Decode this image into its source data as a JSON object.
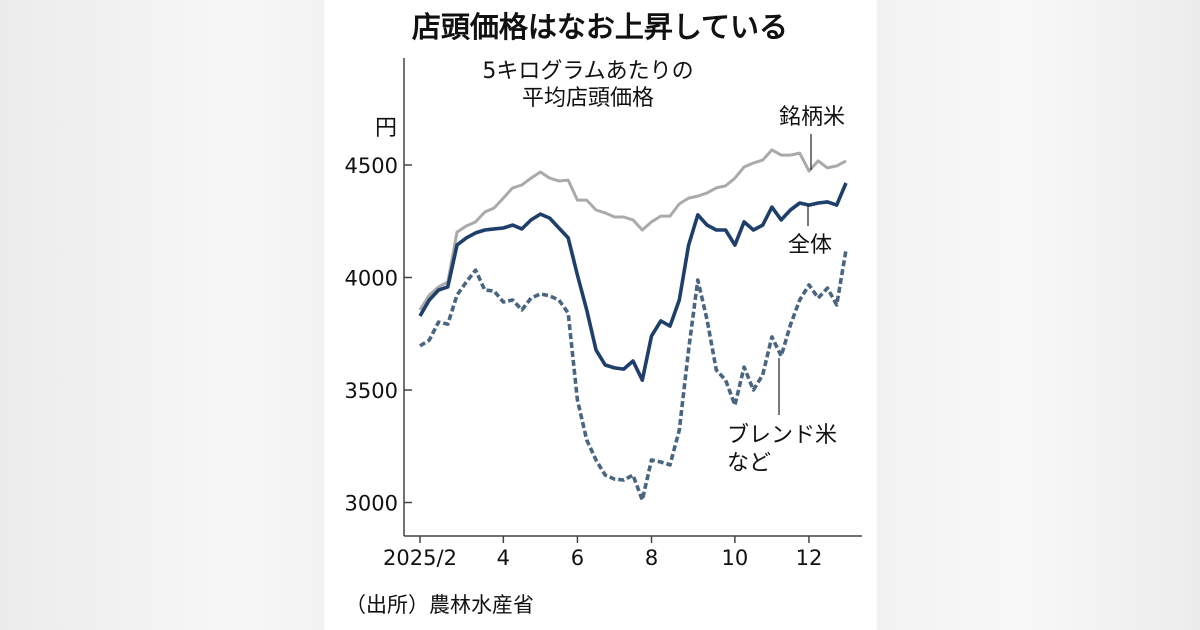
{
  "chart_data": {
    "type": "line",
    "title": "店頭価格はなお上昇している",
    "subtitle": [
      "5キログラムあたりの",
      "平均店頭価格"
    ],
    "ylabel": "円",
    "ylim": [
      2900,
      4800
    ],
    "yticks": [
      3000,
      3500,
      4000,
      4500
    ],
    "xticks": [
      {
        "label": "2025/2",
        "week": 0
      },
      {
        "label": "4",
        "week": 9
      },
      {
        "label": "6",
        "week": 17
      },
      {
        "label": "8",
        "week": 25
      },
      {
        "label": "10",
        "week": 34
      },
      {
        "label": "12",
        "week": 42
      }
    ],
    "x_unit": "weeks since 2025/2",
    "series": [
      {
        "name": "銘柄米",
        "color": "#aaaaaa",
        "style": "solid",
        "values": [
          3856,
          3922,
          3958,
          3980,
          4202,
          4229,
          4247,
          4291,
          4309,
          4353,
          4398,
          4411,
          4442,
          4469,
          4442,
          4429,
          4433,
          4344,
          4344,
          4300,
          4287,
          4269,
          4269,
          4256,
          4211,
          4247,
          4273,
          4273,
          4327,
          4353,
          4362,
          4376,
          4398,
          4407,
          4442,
          4491,
          4509,
          4522,
          4567,
          4544,
          4544,
          4553,
          4473,
          4518,
          4487,
          4496,
          4518
        ]
      },
      {
        "name": "全体",
        "color": "#1f3f6b",
        "style": "solid",
        "values": [
          3829,
          3900,
          3944,
          3958,
          4144,
          4176,
          4198,
          4211,
          4216,
          4220,
          4233,
          4216,
          4256,
          4282,
          4264,
          4220,
          4176,
          4011,
          3856,
          3678,
          3611,
          3598,
          3593,
          3629,
          3544,
          3740,
          3807,
          3784,
          3900,
          4144,
          4278,
          4233,
          4211,
          4211,
          4144,
          4247,
          4211,
          4233,
          4313,
          4256,
          4300,
          4331,
          4322,
          4331,
          4336,
          4322,
          4420
        ]
      },
      {
        "name": "ブレンド米など",
        "label_lines": [
          "ブレンド米",
          "など"
        ],
        "color": "#4a6580",
        "style": "dashed",
        "values": [
          3696,
          3722,
          3802,
          3793,
          3922,
          3980,
          4033,
          3944,
          3940,
          3891,
          3900,
          3856,
          3909,
          3927,
          3918,
          3900,
          3842,
          3456,
          3278,
          3189,
          3122,
          3104,
          3100,
          3122,
          3011,
          3189,
          3180,
          3167,
          3322,
          3678,
          3989,
          3811,
          3589,
          3544,
          3433,
          3602,
          3500,
          3567,
          3736,
          3651,
          3789,
          3900,
          3967,
          3909,
          3953,
          3878,
          4122
        ]
      }
    ],
    "grid": false,
    "source": "（出所）農林水産省"
  }
}
